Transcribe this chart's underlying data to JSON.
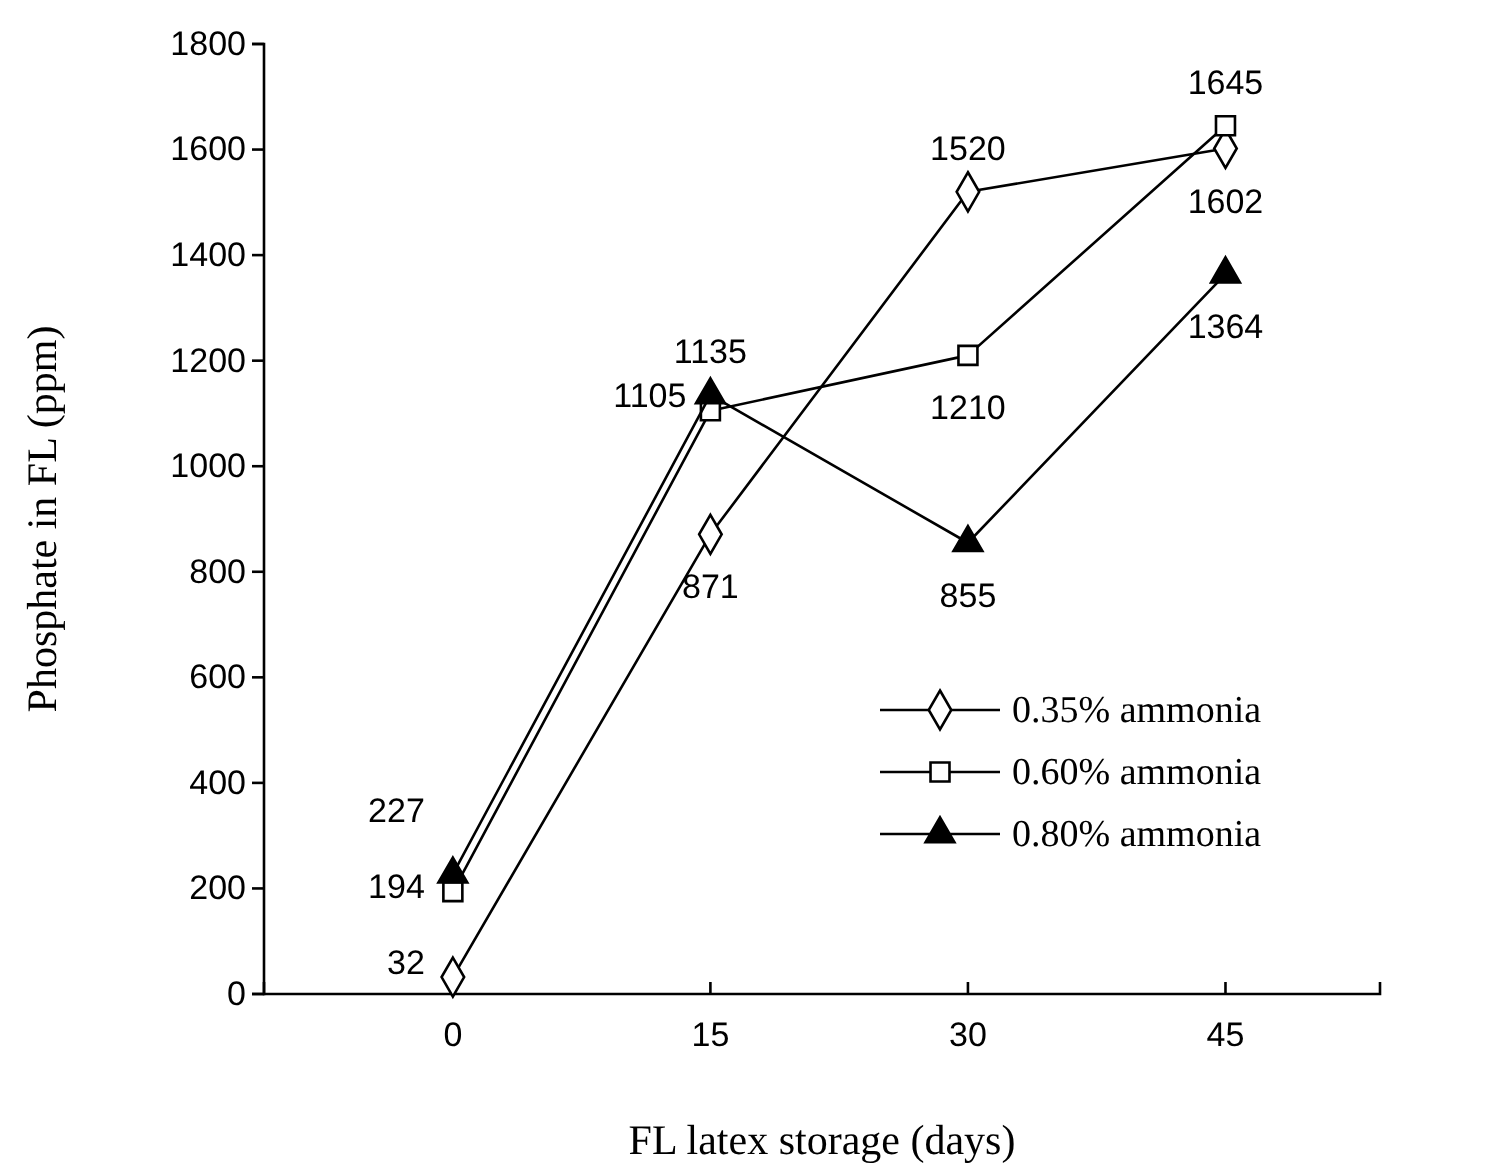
{
  "chart_data": {
    "type": "line",
    "xlabel": "FL latex storage (days)",
    "ylabel": "Phosphate in FL (ppm)",
    "x": [
      0,
      15,
      30,
      45
    ],
    "xlim": [
      -11,
      54
    ],
    "xticks": [
      0,
      15,
      30,
      45
    ],
    "ylim": [
      0,
      1800
    ],
    "yticks": [
      0,
      200,
      400,
      600,
      800,
      1000,
      1200,
      1400,
      1600,
      1800
    ],
    "series": [
      {
        "name": "0.35% ammonia",
        "color": "#000000",
        "marker": "diamond",
        "values": [
          32,
          871,
          1520,
          1602
        ]
      },
      {
        "name": "0.60% ammonia",
        "color": "#000000",
        "marker": "square",
        "values": [
          194,
          1105,
          1210,
          1645
        ]
      },
      {
        "name": "0.80% ammonia",
        "color": "#000000",
        "marker": "triangle",
        "values": [
          227,
          1135,
          855,
          1364
        ]
      }
    ],
    "data_labels": true,
    "legend": "bottom right",
    "grid": false
  }
}
